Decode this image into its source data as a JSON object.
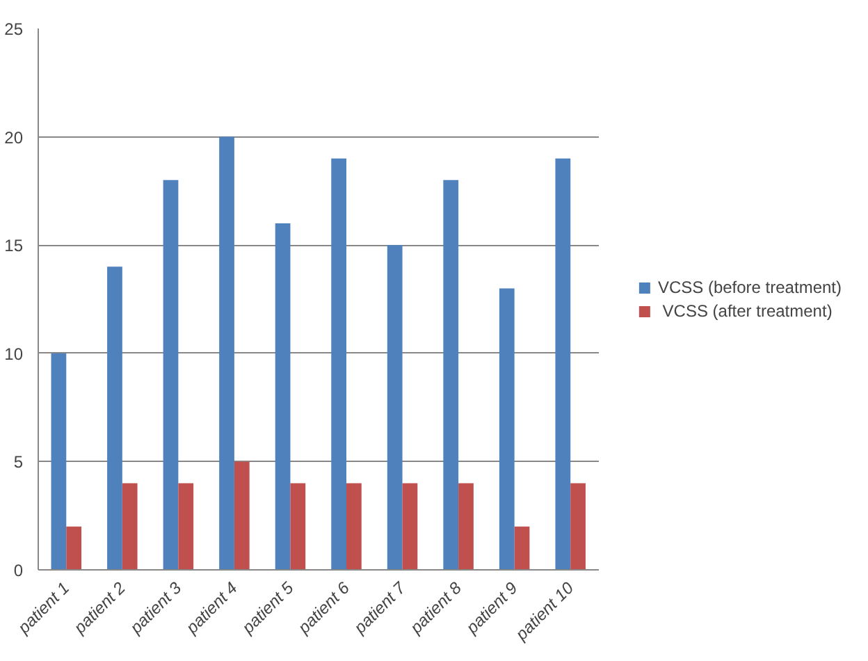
{
  "chart_data": {
    "type": "bar",
    "categories": [
      "patient 1",
      "patient 2",
      "patient 3",
      "patient 4",
      "patient 5",
      "patient 6",
      "patient 7",
      "patient 8",
      "patient 9",
      "patient 10"
    ],
    "series": [
      {
        "name": "VCSS (before treatment)",
        "color": "#4f81bd",
        "values": [
          10,
          14,
          18,
          20,
          16,
          19,
          15,
          18,
          13,
          19
        ]
      },
      {
        "name": " VCSS (after treatment)",
        "color": "#c0504d",
        "values": [
          2,
          4,
          4,
          5,
          4,
          4,
          4,
          4,
          2,
          4
        ]
      }
    ],
    "ylim": [
      0,
      25
    ],
    "yticks": [
      0,
      5,
      10,
      15,
      20,
      25
    ],
    "grid": "y",
    "legend": "right"
  }
}
